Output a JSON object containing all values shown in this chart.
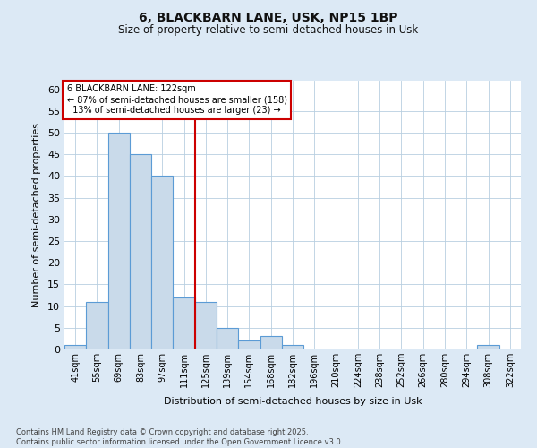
{
  "title1": "6, BLACKBARN LANE, USK, NP15 1BP",
  "title2": "Size of property relative to semi-detached houses in Usk",
  "xlabel": "Distribution of semi-detached houses by size in Usk",
  "ylabel": "Number of semi-detached properties",
  "footnote": "Contains HM Land Registry data © Crown copyright and database right 2025.\nContains public sector information licensed under the Open Government Licence v3.0.",
  "bar_labels": [
    "41sqm",
    "55sqm",
    "69sqm",
    "83sqm",
    "97sqm",
    "111sqm",
    "125sqm",
    "139sqm",
    "154sqm",
    "168sqm",
    "182sqm",
    "196sqm",
    "210sqm",
    "224sqm",
    "238sqm",
    "252sqm",
    "266sqm",
    "280sqm",
    "294sqm",
    "308sqm",
    "322sqm"
  ],
  "bar_values": [
    1,
    11,
    50,
    45,
    40,
    12,
    11,
    5,
    2,
    3,
    1,
    0,
    0,
    0,
    0,
    0,
    0,
    0,
    0,
    1,
    0
  ],
  "bar_color": "#c9daea",
  "bar_edge_color": "#5b9bd5",
  "property_line_x": 5.5,
  "property_size": "122sqm",
  "pct_smaller": 87,
  "count_smaller": 158,
  "pct_larger": 13,
  "count_larger": 23,
  "vline_color": "#cc0000",
  "annotation_box_edge": "#cc0000",
  "ylim": [
    0,
    62
  ],
  "yticks": [
    0,
    5,
    10,
    15,
    20,
    25,
    30,
    35,
    40,
    45,
    50,
    55,
    60
  ],
  "bg_color": "#dce9f5",
  "plot_bg_color": "#ffffff",
  "grid_color": "#b8cfe0"
}
